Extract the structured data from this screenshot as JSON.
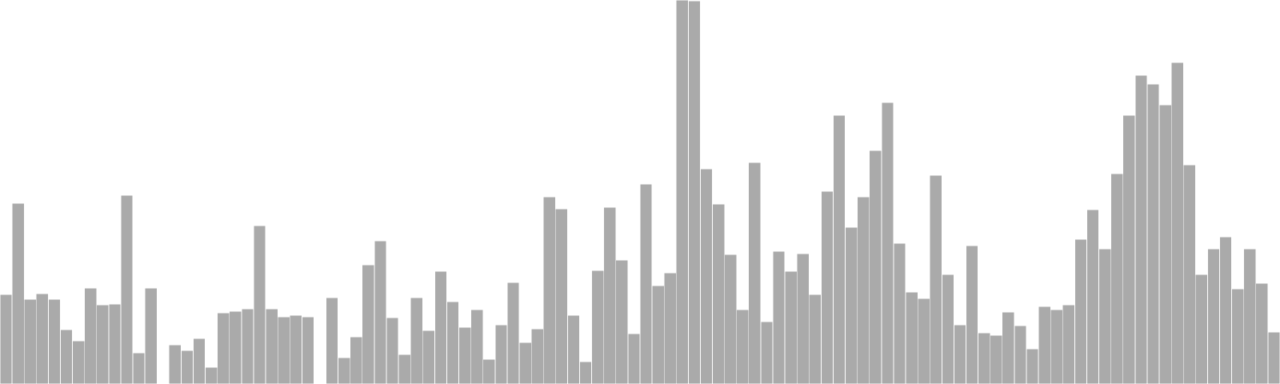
{
  "colors": {
    "bar": "#aaaaaa",
    "bar_edge": "#ffffff",
    "background": "#ffffff"
  },
  "chart_data": {
    "type": "bar",
    "title": "",
    "xlabel": "",
    "ylabel": "",
    "axes_visible": false,
    "grid": false,
    "ylim": [
      0,
      480
    ],
    "values": [
      112,
      226,
      106,
      113,
      106,
      68,
      54,
      120,
      99,
      100,
      236,
      39,
      120,
      0,
      49,
      42,
      57,
      21,
      89,
      91,
      94,
      198,
      94,
      84,
      86,
      84,
      0,
      108,
      33,
      59,
      149,
      179,
      83,
      37,
      108,
      67,
      141,
      103,
      71,
      93,
      31,
      74,
      127,
      52,
      69,
      234,
      219,
      86,
      28,
      142,
      221,
      155,
      63,
      250,
      123,
      139,
      480,
      479,
      269,
      225,
      162,
      93,
      277,
      78,
      166,
      141,
      163,
      112,
      241,
      336,
      196,
      234,
      292,
      352,
      176,
      115,
      107,
      261,
      137,
      74,
      173,
      64,
      61,
      90,
      73,
      44,
      97,
      93,
      99,
      181,
      218,
      169,
      263,
      336,
      386,
      375,
      349,
      402,
      274,
      137,
      169,
      184,
      119,
      169,
      126,
      65
    ]
  }
}
